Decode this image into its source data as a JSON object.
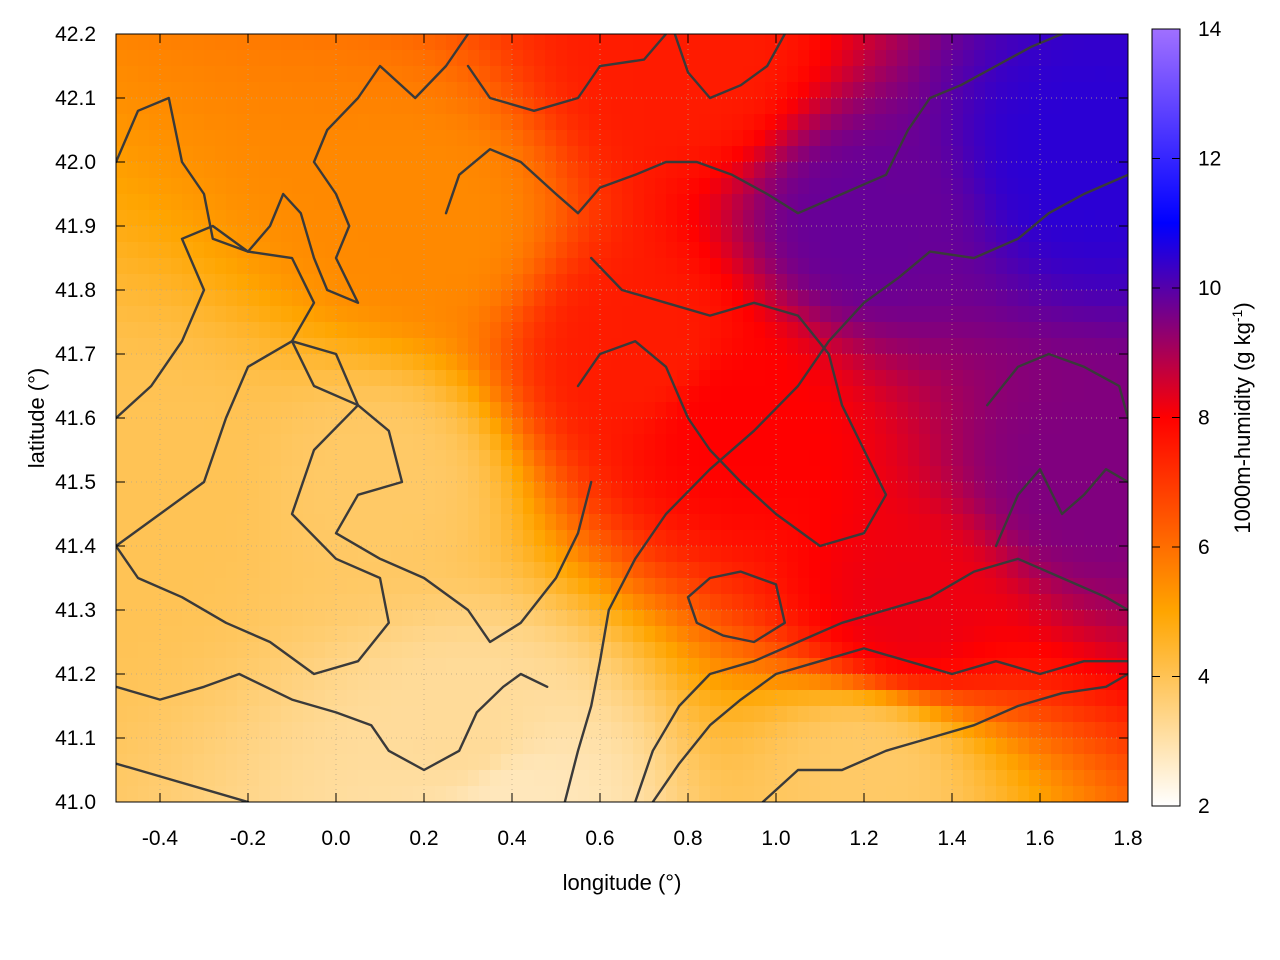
{
  "chart_data": {
    "type": "heatmap",
    "title": "",
    "xlabel": "longitude (°)",
    "ylabel": "latitude (°)",
    "xlim": [
      -0.5,
      1.8
    ],
    "ylim": [
      41.0,
      42.2
    ],
    "x_ticks": [
      "-0.4",
      "-0.2",
      "0.0",
      "0.2",
      "0.4",
      "0.6",
      "0.8",
      "1.0",
      "1.2",
      "1.4",
      "1.6",
      "1.8"
    ],
    "y_ticks": [
      "41.0",
      "41.1",
      "41.2",
      "41.3",
      "41.4",
      "41.5",
      "41.6",
      "41.7",
      "41.8",
      "41.9",
      "42.0",
      "42.1",
      "42.2"
    ],
    "grid": true,
    "colorbar": {
      "label": "1000m-humidity (g kg-1)",
      "label_main": "1000m-humidity (g kg",
      "label_sup": "-1",
      "label_end": ")",
      "range": [
        2,
        14
      ],
      "ticks": [
        "2",
        "4",
        "6",
        "8",
        "10",
        "12",
        "14"
      ],
      "palette": [
        "#ffffff",
        "#ffa500",
        "#ff0000",
        "#0000ff",
        "#a070ff"
      ],
      "palette_stops": [
        2,
        5,
        8,
        11,
        14
      ]
    },
    "humidity_field": {
      "description_units": "g kg-1",
      "sample_points": [
        {
          "lon": -0.4,
          "lat": 41.5,
          "value": 4.0
        },
        {
          "lon": 0.1,
          "lat": 41.5,
          "value": 3.8
        },
        {
          "lon": 0.3,
          "lat": 41.1,
          "value": 3.2
        },
        {
          "lon": 0.4,
          "lat": 41.0,
          "value": 2.8
        },
        {
          "lon": 0.2,
          "lat": 41.9,
          "value": 5.5
        },
        {
          "lon": 0.7,
          "lat": 41.7,
          "value": 7.5
        },
        {
          "lon": 0.9,
          "lat": 41.6,
          "value": 8.0
        },
        {
          "lon": 1.2,
          "lat": 41.9,
          "value": 9.8
        },
        {
          "lon": 1.7,
          "lat": 42.0,
          "value": 10.5
        },
        {
          "lon": 1.7,
          "lat": 41.5,
          "value": 9.5
        },
        {
          "lon": 1.3,
          "lat": 41.3,
          "value": 8.2
        },
        {
          "lon": 1.2,
          "lat": 41.05,
          "value": 3.8
        },
        {
          "lon": 0.8,
          "lat": 42.15,
          "value": 7.5
        }
      ]
    },
    "contour_lines": [
      [
        [
          -0.5,
          42.0
        ],
        [
          -0.45,
          42.08
        ],
        [
          -0.38,
          42.1
        ],
        [
          -0.35,
          42.0
        ],
        [
          -0.3,
          41.95
        ],
        [
          -0.28,
          41.88
        ],
        [
          -0.2,
          41.86
        ],
        [
          -0.15,
          41.9
        ],
        [
          -0.12,
          41.95
        ],
        [
          -0.08,
          41.92
        ],
        [
          -0.05,
          41.85
        ],
        [
          -0.02,
          41.8
        ],
        [
          0.05,
          41.78
        ],
        [
          0.0,
          41.85
        ],
        [
          0.03,
          41.9
        ],
        [
          0.0,
          41.95
        ],
        [
          -0.05,
          42.0
        ],
        [
          -0.02,
          42.05
        ],
        [
          0.05,
          42.1
        ],
        [
          0.1,
          42.15
        ],
        [
          0.18,
          42.1
        ],
        [
          0.25,
          42.15
        ],
        [
          0.3,
          42.2
        ]
      ],
      [
        [
          -0.5,
          41.6
        ],
        [
          -0.42,
          41.65
        ],
        [
          -0.35,
          41.72
        ],
        [
          -0.3,
          41.8
        ],
        [
          -0.35,
          41.88
        ],
        [
          -0.28,
          41.9
        ],
        [
          -0.2,
          41.86
        ],
        [
          -0.1,
          41.85
        ],
        [
          -0.05,
          41.78
        ],
        [
          -0.1,
          41.72
        ],
        [
          -0.05,
          41.65
        ],
        [
          0.05,
          41.62
        ],
        [
          0.12,
          41.58
        ],
        [
          0.15,
          41.5
        ],
        [
          0.05,
          41.48
        ],
        [
          0.0,
          41.42
        ],
        [
          0.1,
          41.38
        ],
        [
          0.2,
          41.35
        ],
        [
          0.3,
          41.3
        ],
        [
          0.35,
          41.25
        ],
        [
          0.42,
          41.28
        ],
        [
          0.5,
          41.35
        ],
        [
          0.55,
          41.42
        ],
        [
          0.58,
          41.5
        ]
      ],
      [
        [
          -0.5,
          41.4
        ],
        [
          -0.4,
          41.45
        ],
        [
          -0.3,
          41.5
        ],
        [
          -0.25,
          41.6
        ],
        [
          -0.2,
          41.68
        ],
        [
          -0.1,
          41.72
        ],
        [
          0.0,
          41.7
        ],
        [
          0.05,
          41.62
        ],
        [
          -0.05,
          41.55
        ],
        [
          -0.1,
          41.45
        ],
        [
          0.0,
          41.38
        ],
        [
          0.1,
          41.35
        ],
        [
          0.12,
          41.28
        ],
        [
          0.05,
          41.22
        ],
        [
          -0.05,
          41.2
        ],
        [
          -0.15,
          41.25
        ],
        [
          -0.25,
          41.28
        ],
        [
          -0.35,
          41.32
        ],
        [
          -0.45,
          41.35
        ],
        [
          -0.5,
          41.4
        ]
      ],
      [
        [
          -0.5,
          41.18
        ],
        [
          -0.4,
          41.16
        ],
        [
          -0.3,
          41.18
        ],
        [
          -0.22,
          41.2
        ],
        [
          -0.1,
          41.16
        ],
        [
          0.0,
          41.14
        ],
        [
          0.08,
          41.12
        ],
        [
          0.12,
          41.08
        ],
        [
          0.2,
          41.05
        ],
        [
          0.28,
          41.08
        ],
        [
          0.32,
          41.14
        ],
        [
          0.38,
          41.18
        ],
        [
          0.42,
          41.2
        ],
        [
          0.48,
          41.18
        ]
      ],
      [
        [
          -0.5,
          41.06
        ],
        [
          -0.4,
          41.04
        ],
        [
          -0.3,
          41.02
        ],
        [
          -0.2,
          41.0
        ]
      ],
      [
        [
          0.52,
          41.0
        ],
        [
          0.55,
          41.08
        ],
        [
          0.58,
          41.15
        ],
        [
          0.6,
          41.22
        ],
        [
          0.62,
          41.3
        ],
        [
          0.68,
          41.38
        ],
        [
          0.75,
          41.45
        ],
        [
          0.85,
          41.52
        ],
        [
          0.95,
          41.58
        ],
        [
          1.05,
          41.65
        ],
        [
          1.12,
          41.72
        ],
        [
          1.2,
          41.78
        ],
        [
          1.28,
          41.82
        ],
        [
          1.35,
          41.86
        ],
        [
          1.45,
          41.85
        ],
        [
          1.55,
          41.88
        ],
        [
          1.62,
          41.92
        ],
        [
          1.7,
          41.95
        ],
        [
          1.8,
          41.98
        ]
      ],
      [
        [
          0.68,
          41.0
        ],
        [
          0.72,
          41.08
        ],
        [
          0.78,
          41.15
        ],
        [
          0.85,
          41.2
        ],
        [
          0.95,
          41.22
        ],
        [
          1.05,
          41.25
        ],
        [
          1.15,
          41.28
        ],
        [
          1.25,
          41.3
        ],
        [
          1.35,
          41.32
        ],
        [
          1.45,
          41.36
        ],
        [
          1.55,
          41.38
        ],
        [
          1.65,
          41.35
        ],
        [
          1.75,
          41.32
        ],
        [
          1.8,
          41.3
        ]
      ],
      [
        [
          0.72,
          41.0
        ],
        [
          0.78,
          41.06
        ],
        [
          0.85,
          41.12
        ],
        [
          0.92,
          41.16
        ],
        [
          1.0,
          41.2
        ],
        [
          1.1,
          41.22
        ],
        [
          1.2,
          41.24
        ],
        [
          1.3,
          41.22
        ],
        [
          1.4,
          41.2
        ],
        [
          1.5,
          41.22
        ],
        [
          1.6,
          41.2
        ],
        [
          1.7,
          41.22
        ],
        [
          1.8,
          41.22
        ]
      ],
      [
        [
          0.97,
          41.0
        ],
        [
          1.05,
          41.05
        ],
        [
          1.15,
          41.05
        ],
        [
          1.25,
          41.08
        ],
        [
          1.35,
          41.1
        ],
        [
          1.45,
          41.12
        ],
        [
          1.55,
          41.15
        ],
        [
          1.65,
          41.17
        ],
        [
          1.75,
          41.18
        ],
        [
          1.8,
          41.2
        ]
      ],
      [
        [
          0.58,
          41.85
        ],
        [
          0.65,
          41.8
        ],
        [
          0.75,
          41.78
        ],
        [
          0.85,
          41.76
        ],
        [
          0.95,
          41.78
        ],
        [
          1.05,
          41.76
        ],
        [
          1.12,
          41.7
        ],
        [
          1.15,
          41.62
        ],
        [
          1.2,
          41.55
        ],
        [
          1.25,
          41.48
        ],
        [
          1.2,
          41.42
        ],
        [
          1.1,
          41.4
        ],
        [
          1.0,
          41.45
        ],
        [
          0.92,
          41.5
        ],
        [
          0.85,
          41.55
        ],
        [
          0.8,
          41.6
        ],
        [
          0.75,
          41.68
        ],
        [
          0.68,
          41.72
        ],
        [
          0.6,
          41.7
        ],
        [
          0.55,
          41.65
        ]
      ],
      [
        [
          1.48,
          41.62
        ],
        [
          1.55,
          41.68
        ],
        [
          1.62,
          41.7
        ],
        [
          1.7,
          41.68
        ],
        [
          1.78,
          41.65
        ],
        [
          1.8,
          41.6
        ]
      ],
      [
        [
          1.5,
          41.4
        ],
        [
          1.55,
          41.48
        ],
        [
          1.6,
          41.52
        ],
        [
          1.65,
          41.45
        ],
        [
          1.7,
          41.48
        ],
        [
          1.75,
          41.52
        ],
        [
          1.8,
          41.5
        ]
      ],
      [
        [
          0.8,
          41.32
        ],
        [
          0.85,
          41.35
        ],
        [
          0.92,
          41.36
        ],
        [
          1.0,
          41.34
        ],
        [
          1.02,
          41.28
        ],
        [
          0.95,
          41.25
        ],
        [
          0.88,
          41.26
        ],
        [
          0.82,
          41.28
        ],
        [
          0.8,
          41.32
        ]
      ],
      [
        [
          0.25,
          41.92
        ],
        [
          0.28,
          41.98
        ],
        [
          0.35,
          42.02
        ],
        [
          0.42,
          42.0
        ],
        [
          0.5,
          41.95
        ],
        [
          0.55,
          41.92
        ],
        [
          0.6,
          41.96
        ],
        [
          0.68,
          41.98
        ],
        [
          0.75,
          42.0
        ],
        [
          0.82,
          42.0
        ],
        [
          0.9,
          41.98
        ],
        [
          0.98,
          41.95
        ],
        [
          1.05,
          41.92
        ],
        [
          1.15,
          41.95
        ],
        [
          1.25,
          41.98
        ],
        [
          1.3,
          42.05
        ],
        [
          1.35,
          42.1
        ],
        [
          1.42,
          42.12
        ],
        [
          1.5,
          42.15
        ],
        [
          1.58,
          42.18
        ],
        [
          1.65,
          42.2
        ]
      ],
      [
        [
          0.77,
          42.2
        ],
        [
          0.8,
          42.14
        ],
        [
          0.85,
          42.1
        ],
        [
          0.92,
          42.12
        ],
        [
          0.98,
          42.15
        ],
        [
          1.02,
          42.2
        ]
      ],
      [
        [
          0.3,
          42.15
        ],
        [
          0.35,
          42.1
        ],
        [
          0.45,
          42.08
        ],
        [
          0.55,
          42.1
        ],
        [
          0.6,
          42.15
        ],
        [
          0.7,
          42.16
        ],
        [
          0.75,
          42.2
        ]
      ]
    ]
  }
}
